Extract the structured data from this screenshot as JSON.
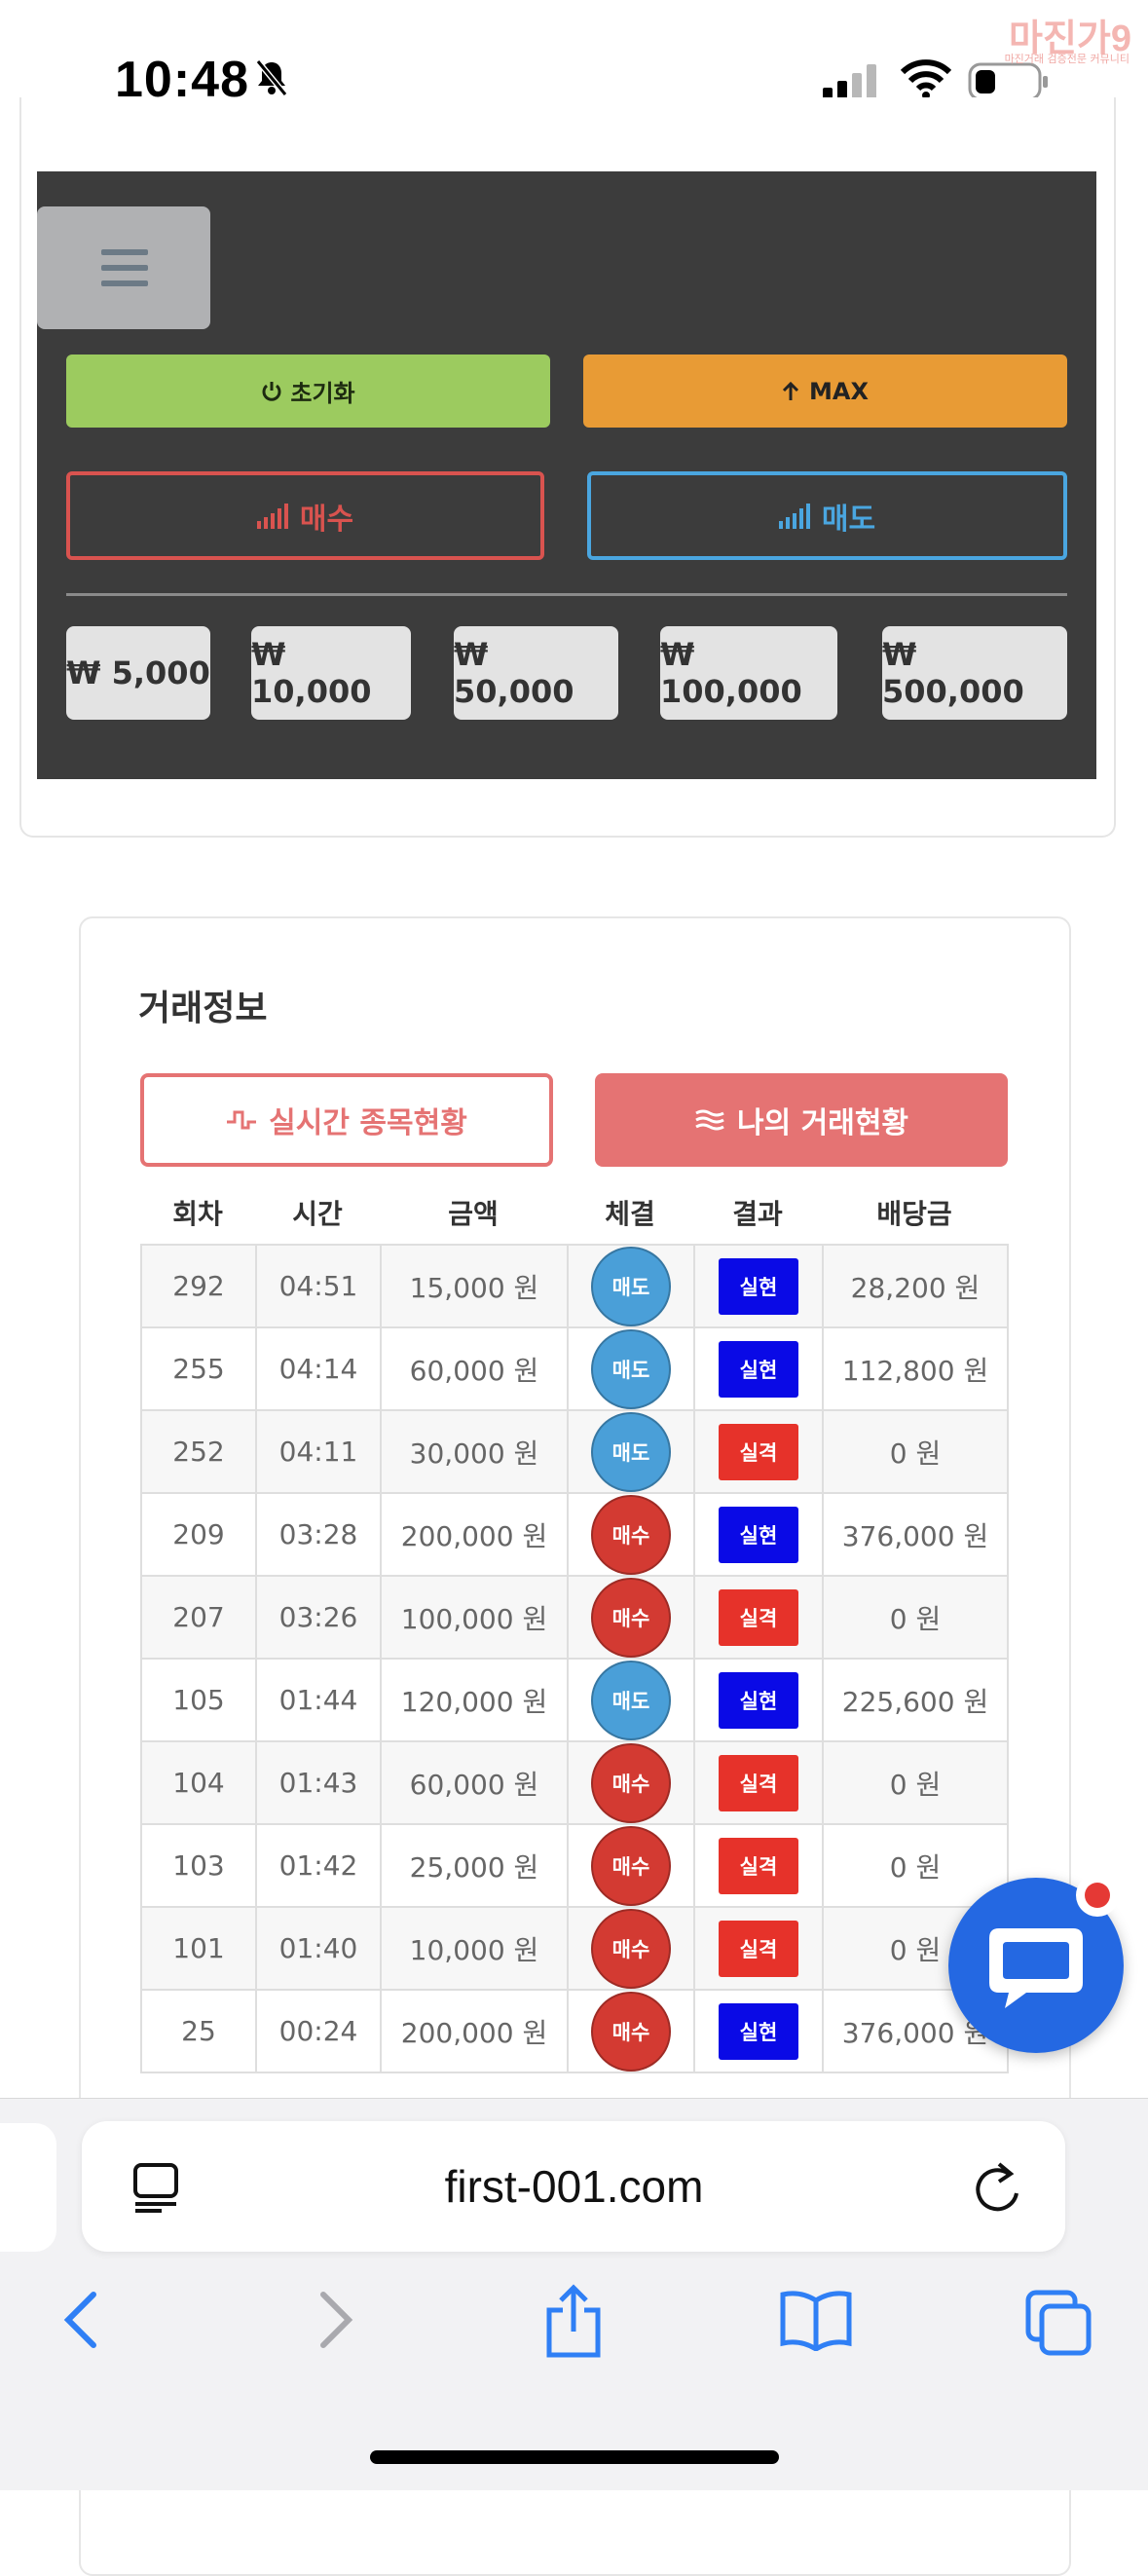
{
  "status_bar": {
    "time": "10:48",
    "watermark_logo": "마진가9",
    "watermark_sub": "마진거래 검증전문 커뮤니티"
  },
  "panel": {
    "reset_label": "초기화",
    "max_label": "MAX",
    "buy_label": "매수",
    "sell_label": "매도",
    "amounts": [
      "₩ 5,000",
      "₩ 10,000",
      "₩ 50,000",
      "₩ 100,000",
      "₩ 500,000"
    ],
    "colors": {
      "reset": "#9ccb5f",
      "max": "#e89b35",
      "buy": "#d9534f",
      "sell": "#4aa6e0"
    }
  },
  "trade_info": {
    "title": "거래정보",
    "tab_live": "실시간 종목현황",
    "tab_mine": "나의 거래현황",
    "headers": [
      "회차",
      "시간",
      "금액",
      "체결",
      "결과",
      "배당금"
    ],
    "rows": [
      {
        "round": "292",
        "time": "04:51",
        "amount": "15,000 원",
        "side": "매도",
        "result": "실현",
        "payout": "28,200 원"
      },
      {
        "round": "255",
        "time": "04:14",
        "amount": "60,000 원",
        "side": "매도",
        "result": "실현",
        "payout": "112,800 원"
      },
      {
        "round": "252",
        "time": "04:11",
        "amount": "30,000 원",
        "side": "매도",
        "result": "실격",
        "payout": "0 원"
      },
      {
        "round": "209",
        "time": "03:28",
        "amount": "200,000 원",
        "side": "매수",
        "result": "실현",
        "payout": "376,000 원"
      },
      {
        "round": "207",
        "time": "03:26",
        "amount": "100,000 원",
        "side": "매수",
        "result": "실격",
        "payout": "0 원"
      },
      {
        "round": "105",
        "time": "01:44",
        "amount": "120,000 원",
        "side": "매도",
        "result": "실현",
        "payout": "225,600 원"
      },
      {
        "round": "104",
        "time": "01:43",
        "amount": "60,000 원",
        "side": "매수",
        "result": "실격",
        "payout": "0 원"
      },
      {
        "round": "103",
        "time": "01:42",
        "amount": "25,000 원",
        "side": "매수",
        "result": "실격",
        "payout": "0 원"
      },
      {
        "round": "101",
        "time": "01:40",
        "amount": "10,000 원",
        "side": "매수",
        "result": "실격",
        "payout": "0 원"
      },
      {
        "round": "25",
        "time": "00:24",
        "amount": "200,000 원",
        "side": "매수",
        "result": "실현",
        "payout": "376,000 원"
      }
    ],
    "colors": {
      "sell": "#4a9fd8",
      "buy": "#d33a32",
      "realized": "#0a0ae6",
      "disqualified": "#e6322a"
    }
  },
  "browser": {
    "url": "first-001.com"
  },
  "icons": {
    "menu": "hamburger-icon",
    "reset": "power-icon",
    "max": "arrow-up-icon",
    "buy": "signal-bars-icon",
    "sell": "signal-bars-icon",
    "live_tab": "pulse-icon",
    "mine_tab": "waves-icon",
    "chat": "chat-bubble-icon"
  }
}
